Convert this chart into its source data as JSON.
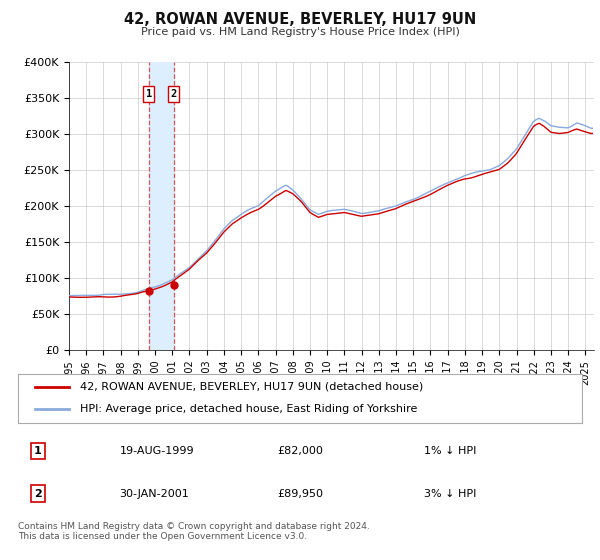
{
  "title": "42, ROWAN AVENUE, BEVERLEY, HU17 9UN",
  "subtitle": "Price paid vs. HM Land Registry's House Price Index (HPI)",
  "ylim": [
    0,
    400000
  ],
  "xlim_start": 1995.0,
  "xlim_end": 2025.5,
  "yticks": [
    0,
    50000,
    100000,
    150000,
    200000,
    250000,
    300000,
    350000,
    400000
  ],
  "ytick_labels": [
    "£0",
    "£50K",
    "£100K",
    "£150K",
    "£200K",
    "£250K",
    "£300K",
    "£350K",
    "£400K"
  ],
  "xticks": [
    1995,
    1996,
    1997,
    1998,
    1999,
    2000,
    2001,
    2002,
    2003,
    2004,
    2005,
    2006,
    2007,
    2008,
    2009,
    2010,
    2011,
    2012,
    2013,
    2014,
    2015,
    2016,
    2017,
    2018,
    2019,
    2020,
    2021,
    2022,
    2023,
    2024,
    2025
  ],
  "transaction1_date": 1999.63,
  "transaction1_price": 82000,
  "transaction1_label": "1",
  "transaction1_display": "19-AUG-1999",
  "transaction1_price_display": "£82,000",
  "transaction1_hpi": "1% ↓ HPI",
  "transaction2_date": 2001.08,
  "transaction2_price": 89950,
  "transaction2_label": "2",
  "transaction2_display": "30-JAN-2001",
  "transaction2_price_display": "£89,950",
  "transaction2_hpi": "3% ↓ HPI",
  "shaded_region_start": 1999.63,
  "shaded_region_end": 2001.08,
  "property_line_color": "#cc0000",
  "hpi_line_color": "#88aadd",
  "shaded_color": "#ddeeff",
  "vline_color": "#dd4444",
  "background_color": "#ffffff",
  "grid_color": "#cccccc",
  "legend_label1": "42, ROWAN AVENUE, BEVERLEY, HU17 9UN (detached house)",
  "legend_label2": "HPI: Average price, detached house, East Riding of Yorkshire",
  "footer": "Contains HM Land Registry data © Crown copyright and database right 2024.\nThis data is licensed under the Open Government Licence v3.0."
}
